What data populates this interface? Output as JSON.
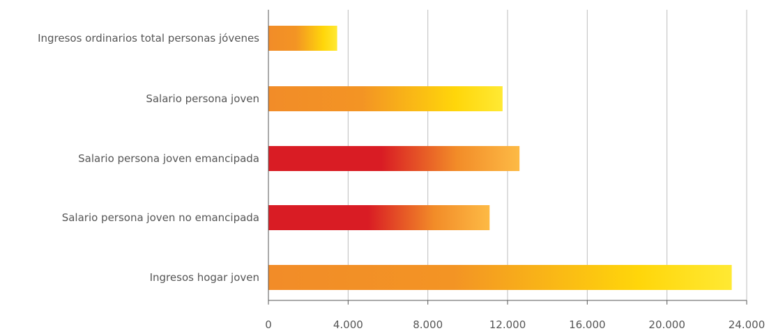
{
  "chart_data": {
    "type": "bar",
    "orientation": "horizontal",
    "categories": [
      "Ingresos ordinarios total personas jóvenes",
      "Salario persona joven",
      "Salario persona joven emancipada",
      "Salario persona joven no emancipada",
      "Ingresos hogar joven"
    ],
    "values": [
      3450,
      11750,
      12600,
      11100,
      23250
    ],
    "bar_styles": [
      "orange",
      "orange",
      "red",
      "red",
      "orange"
    ],
    "xlim": [
      0,
      24000
    ],
    "x_ticks": [
      0,
      4000,
      8000,
      12000,
      16000,
      20000,
      24000
    ],
    "x_tick_labels": [
      "0",
      "4.000",
      "8.000",
      "12.000",
      "16.000",
      "20.000",
      "24.000"
    ],
    "grid": true,
    "colors": {
      "orange_start": "#f28c28",
      "orange_end": "#ffe933",
      "yellow_mid": "#ffd60a",
      "red_start": "#d91c24",
      "red_end": "#fdba45",
      "grid": "#bdbdbd",
      "axis": "#555555",
      "text": "#555555"
    }
  }
}
